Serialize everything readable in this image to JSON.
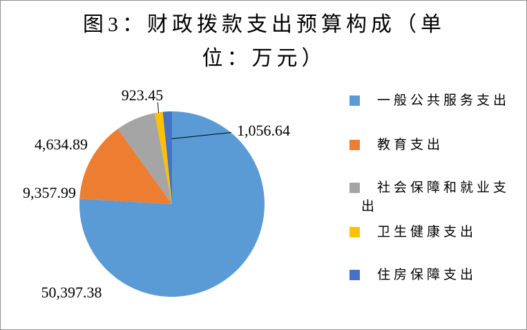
{
  "title": {
    "text": "图3：财政拨款支出预算构成（单位：万元）",
    "lines": [
      "图3：财政拨款支出预算构成（单",
      "位：万元）"
    ]
  },
  "chart_data": {
    "type": "pie",
    "title": "图3：财政拨款支出预算构成（单位：万元）",
    "unit": "万元",
    "legend_position": "right",
    "start_angle_deg": 0,
    "direction": "clockwise",
    "slices": [
      {
        "name": "一般公共服务支出",
        "value": 50397.38,
        "display": "50,397.38",
        "color": "#5B9BD5"
      },
      {
        "name": "教育支出",
        "value": 9357.99,
        "display": "9,357.99",
        "color": "#ED7D31"
      },
      {
        "name": "社会保障和就业支出",
        "value": 4634.89,
        "display": "4,634.89",
        "color": "#A5A5A5"
      },
      {
        "name": "卫生健康支出",
        "value": 923.45,
        "display": "923.45",
        "color": "#FFC000"
      },
      {
        "name": "住房保障支出",
        "value": 1056.64,
        "display": "1,056.64",
        "color": "#4472C4"
      }
    ]
  }
}
